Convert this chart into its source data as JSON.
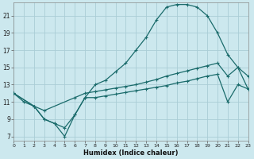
{
  "xlabel": "Humidex (Indice chaleur)",
  "background_color": "#cce8ee",
  "grid_color": "#aacdd6",
  "line_color": "#1a6b6b",
  "xlim": [
    0,
    23
  ],
  "ylim": [
    6.5,
    22.5
  ],
  "xticks": [
    0,
    1,
    2,
    3,
    4,
    5,
    6,
    7,
    8,
    9,
    10,
    11,
    12,
    13,
    14,
    15,
    16,
    17,
    18,
    19,
    20,
    21,
    22,
    23
  ],
  "yticks": [
    7,
    9,
    11,
    13,
    15,
    17,
    19,
    21
  ],
  "line1_x": [
    0,
    1,
    2,
    3,
    4,
    5,
    6,
    7,
    8,
    9,
    10,
    11,
    12,
    13,
    14,
    15,
    16,
    17,
    18,
    19,
    20,
    21,
    22,
    23
  ],
  "line1_y": [
    12.0,
    11.0,
    10.5,
    9.0,
    8.5,
    8.0,
    9.5,
    11.5,
    13.0,
    13.5,
    14.5,
    15.5,
    17.0,
    18.5,
    20.5,
    22.0,
    22.3,
    22.3,
    22.0,
    21.0,
    19.0,
    16.5,
    15.0,
    14.0
  ],
  "line2_x": [
    0,
    2,
    3,
    6,
    7,
    8,
    9,
    10,
    11,
    12,
    13,
    14,
    15,
    16,
    17,
    18,
    19,
    20,
    21,
    22,
    23
  ],
  "line2_y": [
    12.0,
    10.5,
    10.0,
    11.5,
    12.0,
    12.2,
    12.4,
    12.6,
    12.8,
    13.0,
    13.3,
    13.6,
    14.0,
    14.3,
    14.6,
    14.9,
    15.2,
    15.5,
    14.0,
    15.0,
    12.5
  ],
  "line3_x": [
    0,
    2,
    3,
    4,
    5,
    6,
    7,
    8,
    9,
    10,
    11,
    12,
    13,
    14,
    15,
    16,
    17,
    18,
    19,
    20,
    21,
    22,
    23
  ],
  "line3_y": [
    12.0,
    10.5,
    9.0,
    8.5,
    7.0,
    9.5,
    11.5,
    11.5,
    11.7,
    11.9,
    12.1,
    12.3,
    12.5,
    12.7,
    12.9,
    13.2,
    13.4,
    13.7,
    14.0,
    14.2,
    11.0,
    13.0,
    12.5
  ]
}
